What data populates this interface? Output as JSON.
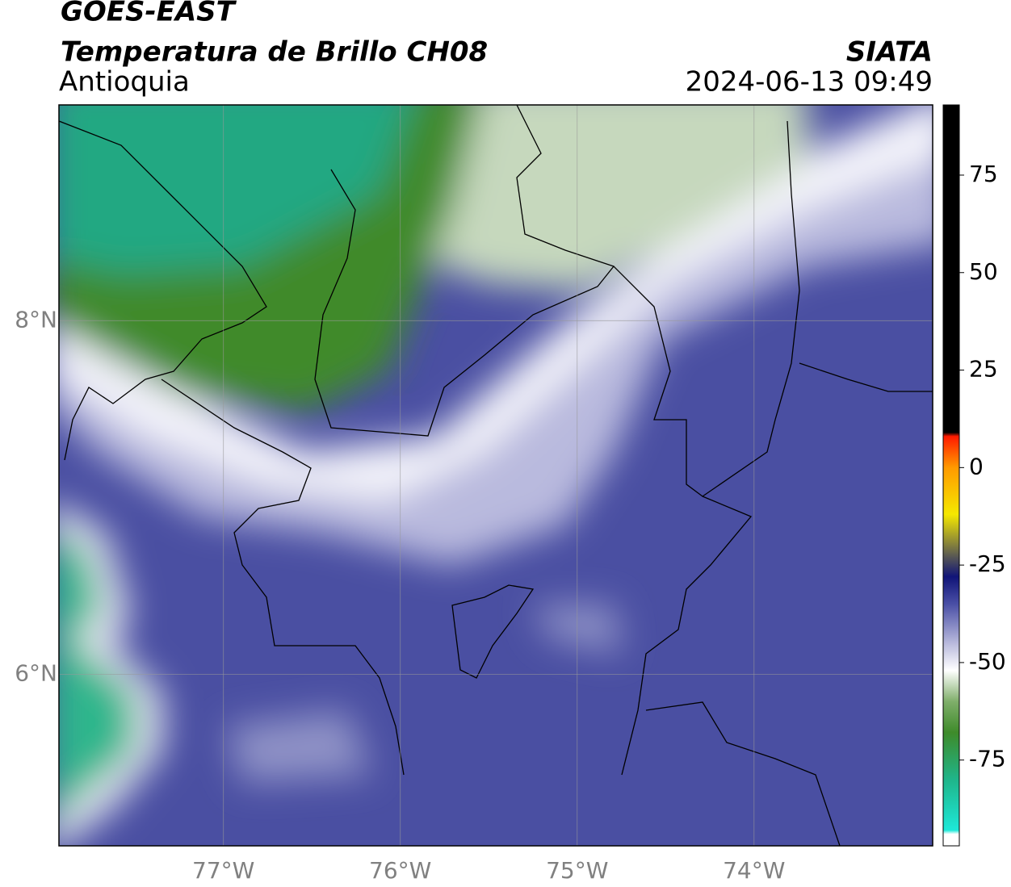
{
  "chart_data": {
    "type": "map",
    "title": "GOES-EAST",
    "subtitle": "Temperatura de Brillo CH08",
    "region": "Antioquia",
    "source": "SIATA",
    "timestamp": "2024-06-13 09:49",
    "xlim": [
      -77.93,
      -72.99
    ],
    "ylim": [
      5.03,
      9.22
    ],
    "xticks": [
      {
        "value": -77,
        "label": "77°W"
      },
      {
        "value": -76,
        "label": "76°W"
      },
      {
        "value": -75,
        "label": "75°W"
      },
      {
        "value": -74,
        "label": "74°W"
      }
    ],
    "yticks": [
      {
        "value": 6,
        "label": "6°N"
      },
      {
        "value": 8,
        "label": "8°N"
      }
    ],
    "grid": true,
    "colorbar": {
      "lim": [
        -97,
        93
      ],
      "ticks": [
        -75,
        -50,
        -25,
        0,
        25,
        50,
        75
      ],
      "colors": [
        {
          "value": -97,
          "color": "#ffffff"
        },
        {
          "value": -94,
          "color": "#ffffff"
        },
        {
          "value": -93,
          "color": "#1ee8d8"
        },
        {
          "value": -80,
          "color": "#1fb58a"
        },
        {
          "value": -68,
          "color": "#3e8b2a"
        },
        {
          "value": -60,
          "color": "#7fae6a"
        },
        {
          "value": -52,
          "color": "#ffffff"
        },
        {
          "value": -45,
          "color": "#b8b9dc"
        },
        {
          "value": -35,
          "color": "#4a4fa6"
        },
        {
          "value": -28,
          "color": "#101478"
        },
        {
          "value": -23,
          "color": "#555555"
        },
        {
          "value": -12,
          "color": "#f5e800"
        },
        {
          "value": 0,
          "color": "#ff9a00"
        },
        {
          "value": 8,
          "color": "#ff1a00"
        },
        {
          "value": 9,
          "color": "#000000"
        },
        {
          "value": 93,
          "color": "#000000"
        }
      ]
    }
  }
}
